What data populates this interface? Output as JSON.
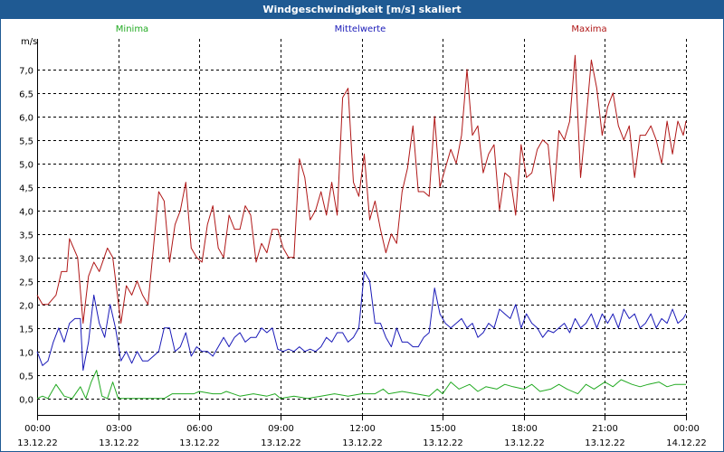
{
  "window": {
    "title": "Windgeschwindigkeit [m/s] skaliert"
  },
  "chart_data": {
    "type": "line",
    "title": "Windgeschwindigkeit [m/s] skaliert",
    "ylabel": "m/s",
    "ylim": [
      -0.35,
      7.65
    ],
    "yticks": [
      0.0,
      0.5,
      1.0,
      1.5,
      2.0,
      2.5,
      3.0,
      3.5,
      4.0,
      4.5,
      5.0,
      5.5,
      6.0,
      6.5,
      7.0
    ],
    "ytick_labels": [
      "0,0",
      "0,5",
      "1,0",
      "1,5",
      "2,0",
      "2,5",
      "3,0",
      "3,5",
      "4,0",
      "4,5",
      "5,0",
      "5,5",
      "6,0",
      "6,5",
      "7,0"
    ],
    "xlim": [
      0,
      24
    ],
    "xticks": [
      0,
      3,
      6,
      9,
      12,
      15,
      18,
      21,
      24
    ],
    "xtick_labels": [
      "00:00",
      "03:00",
      "06:00",
      "09:00",
      "12:00",
      "15:00",
      "18:00",
      "21:00",
      "00:00"
    ],
    "xtick_dates": [
      "13.12.22",
      "13.12.22",
      "13.12.22",
      "13.12.22",
      "13.12.22",
      "13.12.22",
      "13.12.22",
      "13.12.22",
      "14.12.22"
    ],
    "grid": true,
    "legend_placement": "top",
    "series": [
      {
        "name": "Minima",
        "color": "#22aa22",
        "x": [
          0,
          0.2,
          0.4,
          0.7,
          1.0,
          1.3,
          1.6,
          1.8,
          2.0,
          2.2,
          2.4,
          2.6,
          2.8,
          3.0,
          3.5,
          4.0,
          4.5,
          4.7,
          5.0,
          5.5,
          5.8,
          6.0,
          6.5,
          6.8,
          7.0,
          7.5,
          8.0,
          8.5,
          8.8,
          9.0,
          9.5,
          10.0,
          10.5,
          11.0,
          11.5,
          12.0,
          12.5,
          12.8,
          13.0,
          13.5,
          14.0,
          14.5,
          14.8,
          15.0,
          15.3,
          15.6,
          16.0,
          16.3,
          16.6,
          17.0,
          17.3,
          17.6,
          18.0,
          18.3,
          18.6,
          19.0,
          19.3,
          19.6,
          20.0,
          20.3,
          20.6,
          21.0,
          21.3,
          21.6,
          22.0,
          22.3,
          22.6,
          23.0,
          23.3,
          23.6,
          24.0
        ],
        "values": [
          0.0,
          0.05,
          0.0,
          0.3,
          0.05,
          0.0,
          0.25,
          0.0,
          0.35,
          0.6,
          0.05,
          0.0,
          0.35,
          0.0,
          0.0,
          0.0,
          0.0,
          0.0,
          0.1,
          0.1,
          0.1,
          0.15,
          0.1,
          0.1,
          0.15,
          0.05,
          0.1,
          0.05,
          0.1,
          0.0,
          0.05,
          0.0,
          0.05,
          0.1,
          0.05,
          0.1,
          0.1,
          0.2,
          0.1,
          0.15,
          0.1,
          0.05,
          0.2,
          0.1,
          0.35,
          0.2,
          0.3,
          0.15,
          0.25,
          0.2,
          0.3,
          0.25,
          0.2,
          0.3,
          0.15,
          0.2,
          0.3,
          0.2,
          0.1,
          0.3,
          0.2,
          0.35,
          0.25,
          0.4,
          0.3,
          0.25,
          0.3,
          0.35,
          0.25,
          0.3,
          0.3
        ]
      },
      {
        "name": "Mittelwerte",
        "color": "#1a1ab8",
        "x": [
          0,
          0.2,
          0.4,
          0.6,
          0.8,
          1.0,
          1.2,
          1.4,
          1.6,
          1.7,
          1.9,
          2.1,
          2.3,
          2.5,
          2.7,
          2.9,
          3.1,
          3.3,
          3.5,
          3.7,
          3.9,
          4.1,
          4.3,
          4.5,
          4.7,
          4.9,
          5.1,
          5.3,
          5.5,
          5.7,
          5.9,
          6.1,
          6.3,
          6.5,
          6.7,
          6.9,
          7.1,
          7.3,
          7.5,
          7.7,
          7.9,
          8.1,
          8.3,
          8.5,
          8.7,
          8.9,
          9.1,
          9.3,
          9.5,
          9.7,
          9.9,
          10.1,
          10.3,
          10.5,
          10.7,
          10.9,
          11.1,
          11.3,
          11.5,
          11.7,
          11.9,
          12.1,
          12.3,
          12.5,
          12.7,
          12.9,
          13.1,
          13.3,
          13.5,
          13.7,
          13.9,
          14.1,
          14.3,
          14.5,
          14.7,
          14.9,
          15.1,
          15.3,
          15.5,
          15.7,
          15.9,
          16.1,
          16.3,
          16.5,
          16.7,
          16.9,
          17.1,
          17.3,
          17.5,
          17.7,
          17.9,
          18.1,
          18.3,
          18.5,
          18.7,
          18.9,
          19.1,
          19.3,
          19.5,
          19.7,
          19.9,
          20.1,
          20.3,
          20.5,
          20.7,
          20.9,
          21.1,
          21.3,
          21.5,
          21.7,
          21.9,
          22.1,
          22.3,
          22.5,
          22.7,
          22.9,
          23.1,
          23.3,
          23.5,
          23.7,
          23.9,
          24.0
        ],
        "values": [
          1.0,
          0.7,
          0.8,
          1.2,
          1.5,
          1.2,
          1.6,
          1.7,
          1.7,
          0.6,
          1.2,
          2.2,
          1.6,
          1.3,
          2.0,
          1.5,
          0.8,
          1.0,
          0.75,
          1.0,
          0.8,
          0.8,
          0.9,
          1.0,
          1.5,
          1.5,
          1.0,
          1.1,
          1.4,
          0.9,
          1.1,
          1.0,
          1.0,
          0.9,
          1.1,
          1.3,
          1.1,
          1.3,
          1.4,
          1.2,
          1.3,
          1.3,
          1.5,
          1.4,
          1.5,
          1.05,
          1.0,
          1.05,
          1.0,
          1.1,
          1.0,
          1.05,
          1.0,
          1.1,
          1.3,
          1.2,
          1.4,
          1.4,
          1.2,
          1.3,
          1.5,
          2.7,
          2.5,
          1.6,
          1.6,
          1.3,
          1.1,
          1.5,
          1.2,
          1.2,
          1.1,
          1.1,
          1.3,
          1.4,
          2.35,
          1.8,
          1.6,
          1.5,
          1.6,
          1.7,
          1.5,
          1.6,
          1.3,
          1.4,
          1.6,
          1.5,
          1.9,
          1.8,
          1.7,
          2.0,
          1.5,
          1.8,
          1.6,
          1.5,
          1.3,
          1.45,
          1.4,
          1.5,
          1.6,
          1.4,
          1.7,
          1.5,
          1.6,
          1.8,
          1.5,
          1.8,
          1.6,
          1.8,
          1.5,
          1.9,
          1.7,
          1.8,
          1.5,
          1.6,
          1.8,
          1.5,
          1.7,
          1.6,
          1.9,
          1.6,
          1.7,
          1.8
        ]
      },
      {
        "name": "Maxima",
        "color": "#b01818",
        "x": [
          0,
          0.2,
          0.4,
          0.7,
          0.9,
          1.1,
          1.2,
          1.5,
          1.7,
          1.9,
          2.1,
          2.3,
          2.6,
          2.8,
          3.1,
          3.3,
          3.5,
          3.7,
          3.9,
          4.1,
          4.3,
          4.5,
          4.7,
          4.9,
          5.1,
          5.3,
          5.5,
          5.7,
          5.9,
          6.1,
          6.3,
          6.5,
          6.7,
          6.9,
          7.1,
          7.3,
          7.5,
          7.7,
          7.9,
          8.1,
          8.3,
          8.5,
          8.7,
          8.9,
          9.1,
          9.3,
          9.5,
          9.7,
          9.9,
          10.1,
          10.3,
          10.5,
          10.7,
          10.9,
          11.1,
          11.3,
          11.5,
          11.7,
          11.9,
          12.1,
          12.3,
          12.5,
          12.7,
          12.9,
          13.1,
          13.3,
          13.5,
          13.7,
          13.9,
          14.1,
          14.3,
          14.5,
          14.7,
          14.9,
          15.1,
          15.3,
          15.5,
          15.7,
          15.9,
          16.1,
          16.3,
          16.5,
          16.7,
          16.9,
          17.1,
          17.3,
          17.5,
          17.7,
          17.9,
          18.1,
          18.3,
          18.5,
          18.7,
          18.9,
          19.1,
          19.3,
          19.5,
          19.7,
          19.9,
          20.1,
          20.3,
          20.5,
          20.7,
          20.9,
          21.1,
          21.3,
          21.5,
          21.7,
          21.9,
          22.1,
          22.3,
          22.5,
          22.7,
          22.9,
          23.1,
          23.3,
          23.5,
          23.7,
          23.9,
          24.0
        ],
        "values": [
          2.2,
          2.0,
          2.0,
          2.2,
          2.7,
          2.7,
          3.4,
          3.0,
          1.6,
          2.6,
          2.9,
          2.7,
          3.2,
          3.0,
          1.6,
          2.4,
          2.2,
          2.5,
          2.2,
          2.0,
          3.2,
          4.4,
          4.2,
          2.9,
          3.7,
          4.0,
          4.6,
          3.2,
          3.0,
          2.9,
          3.7,
          4.1,
          3.2,
          3.0,
          3.9,
          3.6,
          3.6,
          4.1,
          3.9,
          2.9,
          3.3,
          3.1,
          3.6,
          3.6,
          3.2,
          3.0,
          3.0,
          5.1,
          4.7,
          3.8,
          4.0,
          4.4,
          3.9,
          4.6,
          3.9,
          6.4,
          6.6,
          4.6,
          4.3,
          5.2,
          3.8,
          4.2,
          3.6,
          3.1,
          3.5,
          3.3,
          4.4,
          4.9,
          5.8,
          4.4,
          4.4,
          4.3,
          6.0,
          4.5,
          4.9,
          5.3,
          5.0,
          5.6,
          7.0,
          5.6,
          5.8,
          4.8,
          5.2,
          5.4,
          4.0,
          4.8,
          4.7,
          3.9,
          5.4,
          4.7,
          4.8,
          5.3,
          5.5,
          5.4,
          4.2,
          5.7,
          5.5,
          5.9,
          7.3,
          4.7,
          5.9,
          7.2,
          6.6,
          5.6,
          6.2,
          6.5,
          5.8,
          5.5,
          5.8,
          4.7,
          5.6,
          5.6,
          5.8,
          5.5,
          5.0,
          5.9,
          5.2,
          5.9,
          5.6,
          5.9
        ]
      }
    ]
  }
}
